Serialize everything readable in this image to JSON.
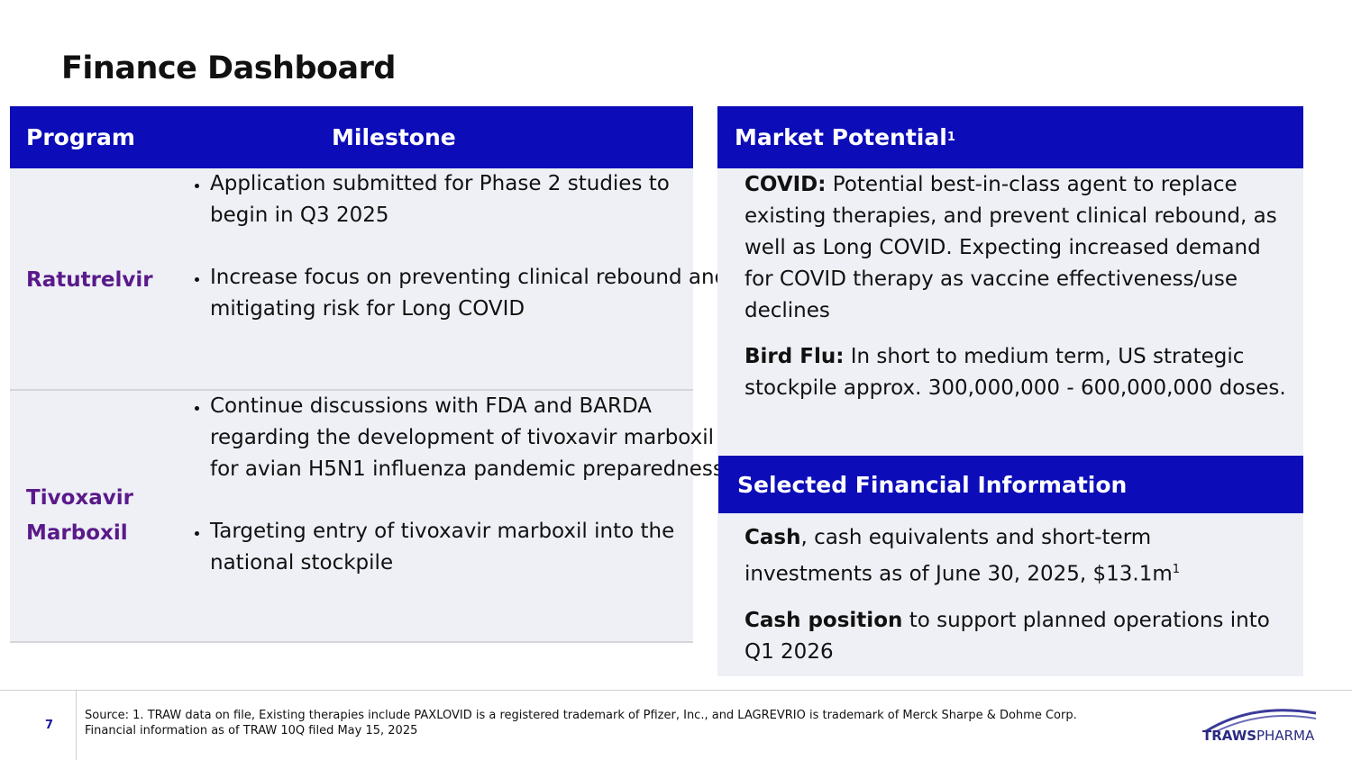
{
  "header": {
    "title": "Finance Dashboard"
  },
  "table": {
    "headers": [
      "Program",
      "Milestone"
    ],
    "rows": [
      {
        "program": "Ratutrelvir",
        "milestones": [
          "Application submitted for Phase 2 studies to begin in Q3 2025",
          "Increase focus on preventing clinical rebound and mitigating risk for Long COVID"
        ]
      },
      {
        "program": "Tivoxavir Marboxil",
        "milestones": [
          "Continue discussions with FDA and BARDA regarding the development of tivoxavir marboxil for avian H5N1 influenza pandemic preparedness",
          "Targeting entry of tivoxavir marboxil into the national stockpile"
        ]
      }
    ]
  },
  "market": {
    "title": "Market Potential",
    "title_sup": "1",
    "items": [
      {
        "label": "COVID:",
        "text": "Potential best-in-class agent to replace existing therapies, and prevent clinical rebound, as well as Long COVID. Expecting increased demand for COVID therapy as vaccine effectiveness/use declines"
      },
      {
        "label": "Bird Flu:",
        "text": "In short to medium term, US strategic stockpile approx. 300,000,000 - 600,000,000 doses."
      }
    ]
  },
  "financial": {
    "title": "Selected Financial Information",
    "items": [
      {
        "label": "Cash",
        "text": ", cash equivalents and short-term investments as of June 30, 2025, $13.1m",
        "sup": "1"
      },
      {
        "label": "Cash position",
        "text": "to support planned operations into Q1 2026"
      }
    ]
  },
  "footer": {
    "page": "7",
    "source": "Source: 1. TRAW data on file, Existing therapies include PAXLOVID is a registered trademark of Pfizer, Inc., and LAGREVRIO is trademark of Merck Sharpe & Dohme Corp.",
    "note": "Financial information as of TRAW 10Q filed May 15, 2025",
    "logo_main": "TRAWS",
    "logo_sub": "PHARMA"
  }
}
